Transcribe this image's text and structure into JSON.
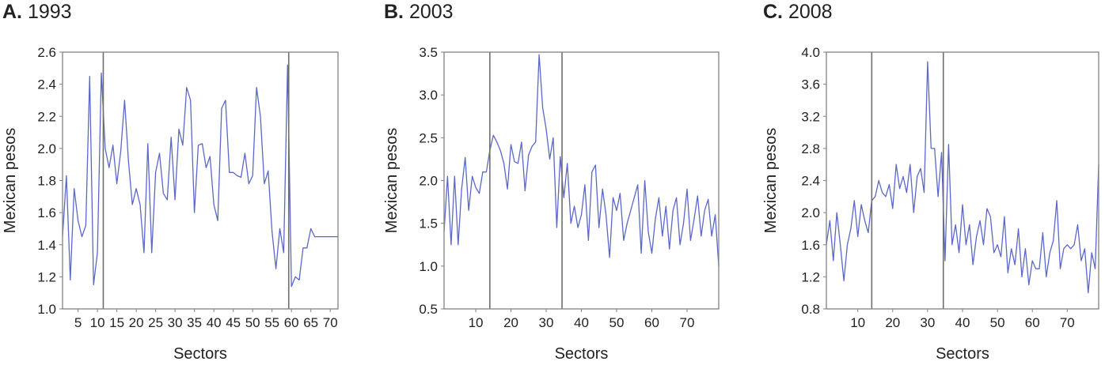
{
  "chart_data": [
    {
      "type": "line",
      "panel_letter": "A.",
      "title": "1993",
      "xlabel": "Sectors",
      "ylabel": "Mexican pesos",
      "xlim": [
        1,
        72
      ],
      "ylim": [
        1.0,
        2.6
      ],
      "xticks": [
        5,
        10,
        15,
        20,
        25,
        30,
        35,
        40,
        45,
        50,
        55,
        60,
        65,
        70
      ],
      "yticks": [
        1.0,
        1.2,
        1.4,
        1.6,
        1.8,
        2.0,
        2.2,
        2.4,
        2.6
      ],
      "ytick_labels": [
        "1.0",
        "1.2",
        "1.4",
        "1.6",
        "1.8",
        "2.0",
        "2.2",
        "2.4",
        "2.6"
      ],
      "vlines": [
        11.5,
        59.3
      ],
      "line_color": "#5b67c9",
      "series": [
        {
          "x": [
            1,
            2,
            3,
            4,
            5,
            6,
            7,
            8,
            9,
            10,
            11,
            12,
            13,
            14,
            15,
            16,
            17,
            18,
            19,
            20,
            21,
            22,
            23,
            24,
            25,
            26,
            27,
            28,
            29,
            30,
            31,
            32,
            33,
            34,
            35,
            36,
            37,
            38,
            39,
            40,
            41,
            42,
            43,
            44,
            45,
            46,
            47,
            48,
            49,
            50,
            51,
            52,
            53,
            54,
            55,
            56,
            57,
            58,
            59,
            60,
            61,
            62,
            63,
            64,
            65,
            66,
            67,
            68,
            69,
            70,
            71,
            72
          ],
          "values": [
            1.45,
            1.83,
            1.18,
            1.75,
            1.55,
            1.45,
            1.52,
            2.45,
            1.15,
            1.35,
            2.47,
            2.0,
            1.88,
            2.02,
            1.78,
            1.98,
            2.3,
            1.92,
            1.65,
            1.75,
            1.65,
            1.35,
            2.03,
            1.35,
            1.85,
            1.97,
            1.72,
            1.68,
            2.07,
            1.68,
            2.12,
            2.02,
            2.38,
            2.3,
            1.6,
            2.02,
            2.03,
            1.88,
            1.95,
            1.65,
            1.55,
            2.25,
            2.3,
            1.85,
            1.85,
            1.83,
            1.82,
            1.97,
            1.78,
            1.83,
            2.38,
            2.2,
            1.78,
            1.86,
            1.48,
            1.25,
            1.5,
            1.35,
            2.52,
            1.14,
            1.2,
            1.18,
            1.38,
            1.38,
            1.5,
            1.45,
            1.45,
            1.45,
            1.45,
            1.45,
            1.45,
            1.45
          ]
        }
      ]
    },
    {
      "type": "line",
      "panel_letter": "B.",
      "title": "2003",
      "xlabel": "Sectors",
      "ylabel": "Mexican pesos",
      "xlim": [
        1,
        79
      ],
      "ylim": [
        0.5,
        3.5
      ],
      "xticks": [
        10,
        20,
        30,
        40,
        50,
        60,
        70
      ],
      "yticks": [
        0.5,
        1.0,
        1.5,
        2.0,
        2.5,
        3.0,
        3.5
      ],
      "ytick_labels": [
        "0.5",
        "1.0",
        "1.5",
        "2.0",
        "2.5",
        "3.0",
        "3.5"
      ],
      "vlines": [
        14,
        34.5
      ],
      "line_color": "#5b67c9",
      "series": [
        {
          "x": [
            1,
            2,
            3,
            4,
            5,
            6,
            7,
            8,
            9,
            10,
            11,
            12,
            13,
            14,
            15,
            16,
            17,
            18,
            19,
            20,
            21,
            22,
            23,
            24,
            25,
            26,
            27,
            28,
            29,
            30,
            31,
            32,
            33,
            34,
            35,
            36,
            37,
            38,
            39,
            40,
            41,
            42,
            43,
            44,
            45,
            46,
            47,
            48,
            49,
            50,
            51,
            52,
            53,
            54,
            55,
            56,
            57,
            58,
            59,
            60,
            61,
            62,
            63,
            64,
            65,
            66,
            67,
            68,
            69,
            70,
            71,
            72,
            73,
            74,
            75,
            76,
            77,
            78,
            79
          ],
          "values": [
            1.4,
            2.05,
            1.25,
            2.05,
            1.25,
            1.9,
            2.27,
            1.65,
            2.05,
            1.92,
            1.85,
            2.1,
            2.1,
            2.35,
            2.53,
            2.45,
            2.35,
            2.2,
            1.9,
            2.42,
            2.22,
            2.2,
            2.45,
            1.88,
            2.3,
            2.4,
            2.45,
            3.47,
            2.85,
            2.6,
            2.25,
            2.5,
            1.45,
            2.28,
            1.8,
            2.2,
            1.5,
            1.7,
            1.45,
            1.6,
            1.95,
            1.3,
            2.1,
            2.18,
            1.45,
            1.9,
            1.6,
            1.1,
            1.8,
            1.65,
            1.85,
            1.3,
            1.5,
            1.65,
            1.8,
            1.95,
            1.15,
            2.0,
            1.4,
            1.15,
            1.55,
            1.8,
            1.35,
            1.7,
            1.2,
            1.65,
            1.8,
            1.25,
            1.5,
            1.9,
            1.3,
            1.55,
            1.82,
            1.35,
            1.65,
            1.78,
            1.35,
            1.6,
            1.0
          ]
        }
      ]
    },
    {
      "type": "line",
      "panel_letter": "C.",
      "title": "2008",
      "xlabel": "Sectors",
      "ylabel": "Mexican pesos",
      "xlim": [
        1,
        79
      ],
      "ylim": [
        0.8,
        4.0
      ],
      "xticks": [
        10,
        20,
        30,
        40,
        50,
        60,
        70
      ],
      "yticks": [
        0.8,
        1.2,
        1.6,
        2.0,
        2.4,
        2.8,
        3.2,
        3.6,
        4.0
      ],
      "ytick_labels": [
        "0.8",
        "1.2",
        "1.6",
        "2.0",
        "2.4",
        "2.8",
        "3.2",
        "3.6",
        "4.0"
      ],
      "vlines": [
        14,
        34.5
      ],
      "line_color": "#5b67c9",
      "series": [
        {
          "x": [
            1,
            2,
            3,
            4,
            5,
            6,
            7,
            8,
            9,
            10,
            11,
            12,
            13,
            14,
            15,
            16,
            17,
            18,
            19,
            20,
            21,
            22,
            23,
            24,
            25,
            26,
            27,
            28,
            29,
            30,
            31,
            32,
            33,
            34,
            35,
            36,
            37,
            38,
            39,
            40,
            41,
            42,
            43,
            44,
            45,
            46,
            47,
            48,
            49,
            50,
            51,
            52,
            53,
            54,
            55,
            56,
            57,
            58,
            59,
            60,
            61,
            62,
            63,
            64,
            65,
            66,
            67,
            68,
            69,
            70,
            71,
            72,
            73,
            74,
            75,
            76,
            77,
            78,
            79
          ],
          "values": [
            1.6,
            1.9,
            1.4,
            2.0,
            1.6,
            1.15,
            1.6,
            1.8,
            2.15,
            1.7,
            2.1,
            1.9,
            1.75,
            2.15,
            2.2,
            2.4,
            2.25,
            2.2,
            2.35,
            2.05,
            2.6,
            2.3,
            2.45,
            2.25,
            2.6,
            2.0,
            2.45,
            2.55,
            2.25,
            3.88,
            2.8,
            2.8,
            2.2,
            2.75,
            1.4,
            2.85,
            1.6,
            1.85,
            1.5,
            2.1,
            1.6,
            1.85,
            1.35,
            1.7,
            1.9,
            1.6,
            2.05,
            1.95,
            1.5,
            1.6,
            1.45,
            1.95,
            1.25,
            1.55,
            1.35,
            1.8,
            1.2,
            1.55,
            1.1,
            1.4,
            1.3,
            1.3,
            1.75,
            1.2,
            1.5,
            1.65,
            2.15,
            1.3,
            1.55,
            1.6,
            1.55,
            1.6,
            1.85,
            1.4,
            1.55,
            1.0,
            1.5,
            1.3,
            2.6
          ]
        }
      ]
    }
  ]
}
